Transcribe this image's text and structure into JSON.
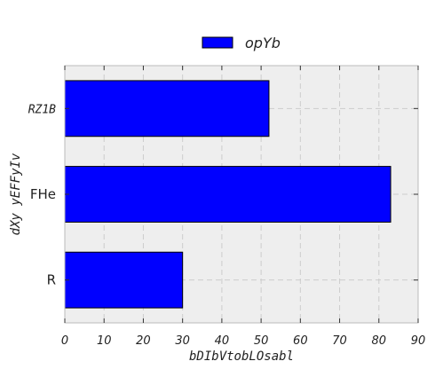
{
  "chart_data": {
    "type": "bar",
    "orientation": "horizontal",
    "title": "",
    "xlabel": "bDIbVtobLOsabl",
    "ylabel": "dXy yEFFyIv",
    "categories": [
      "R",
      "FHe",
      "RZ1B"
    ],
    "series": [
      {
        "name": "opYb",
        "values": [
          30,
          83,
          52
        ],
        "color": "#0000ff"
      }
    ],
    "xlim": [
      0,
      90
    ],
    "x_ticks": [
      0,
      10,
      20,
      30,
      40,
      50,
      60,
      70,
      80,
      90
    ],
    "grid": true,
    "legend_position": "top-center",
    "colors": {
      "plot_background": "#eeeeee",
      "bar": "#0000ff",
      "bar_edge": "#000000",
      "grid": "#cccccc",
      "frame": "#bbbbbb"
    }
  }
}
